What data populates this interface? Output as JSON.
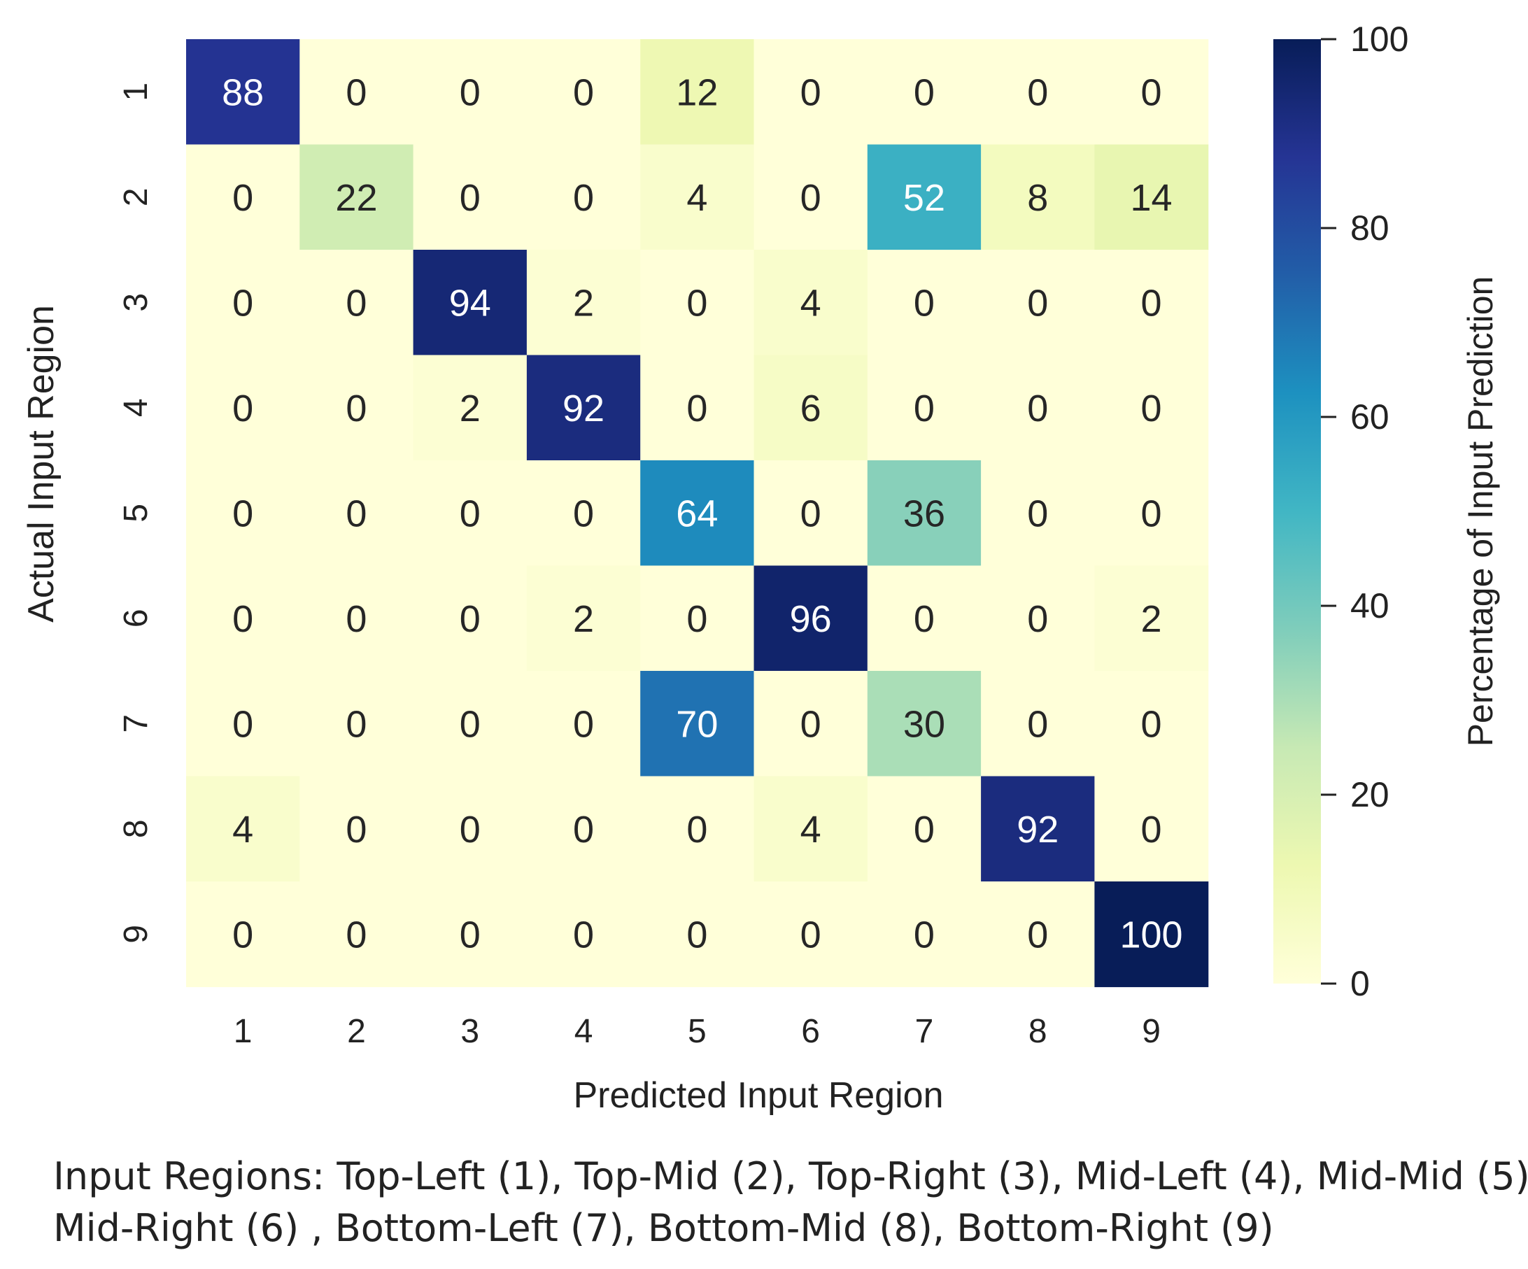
{
  "chart_data": {
    "type": "heatmap",
    "title": "",
    "xlabel": "Predicted Input Region",
    "ylabel": "Actual Input Region",
    "x_categories": [
      "1",
      "2",
      "3",
      "4",
      "5",
      "6",
      "7",
      "8",
      "9"
    ],
    "y_categories": [
      "1",
      "2",
      "3",
      "4",
      "5",
      "6",
      "7",
      "8",
      "9"
    ],
    "values": [
      [
        88,
        0,
        0,
        0,
        12,
        0,
        0,
        0,
        0
      ],
      [
        0,
        22,
        0,
        0,
        4,
        0,
        52,
        8,
        14
      ],
      [
        0,
        0,
        94,
        2,
        0,
        4,
        0,
        0,
        0
      ],
      [
        0,
        0,
        2,
        92,
        0,
        6,
        0,
        0,
        0
      ],
      [
        0,
        0,
        0,
        0,
        64,
        0,
        36,
        0,
        0
      ],
      [
        0,
        0,
        0,
        2,
        0,
        96,
        0,
        0,
        2
      ],
      [
        0,
        0,
        0,
        0,
        70,
        0,
        30,
        0,
        0
      ],
      [
        4,
        0,
        0,
        0,
        0,
        4,
        0,
        92,
        0
      ],
      [
        0,
        0,
        0,
        0,
        0,
        0,
        0,
        0,
        100
      ]
    ],
    "colorbar": {
      "label": "Percentage of Input Prediction",
      "range": [
        0,
        100
      ],
      "ticks": [
        "0",
        "20",
        "40",
        "60",
        "80",
        "100"
      ],
      "colormap": "YlGnBu"
    }
  },
  "caption": {
    "line1": "Input Regions: Top-Left (1), Top-Mid (2), Top-Right (3), Mid-Left (4), Mid-Mid (5),",
    "line2": "Mid-Right (6) , Bottom-Left (7), Bottom-Mid (8), Bottom-Right (9)"
  }
}
